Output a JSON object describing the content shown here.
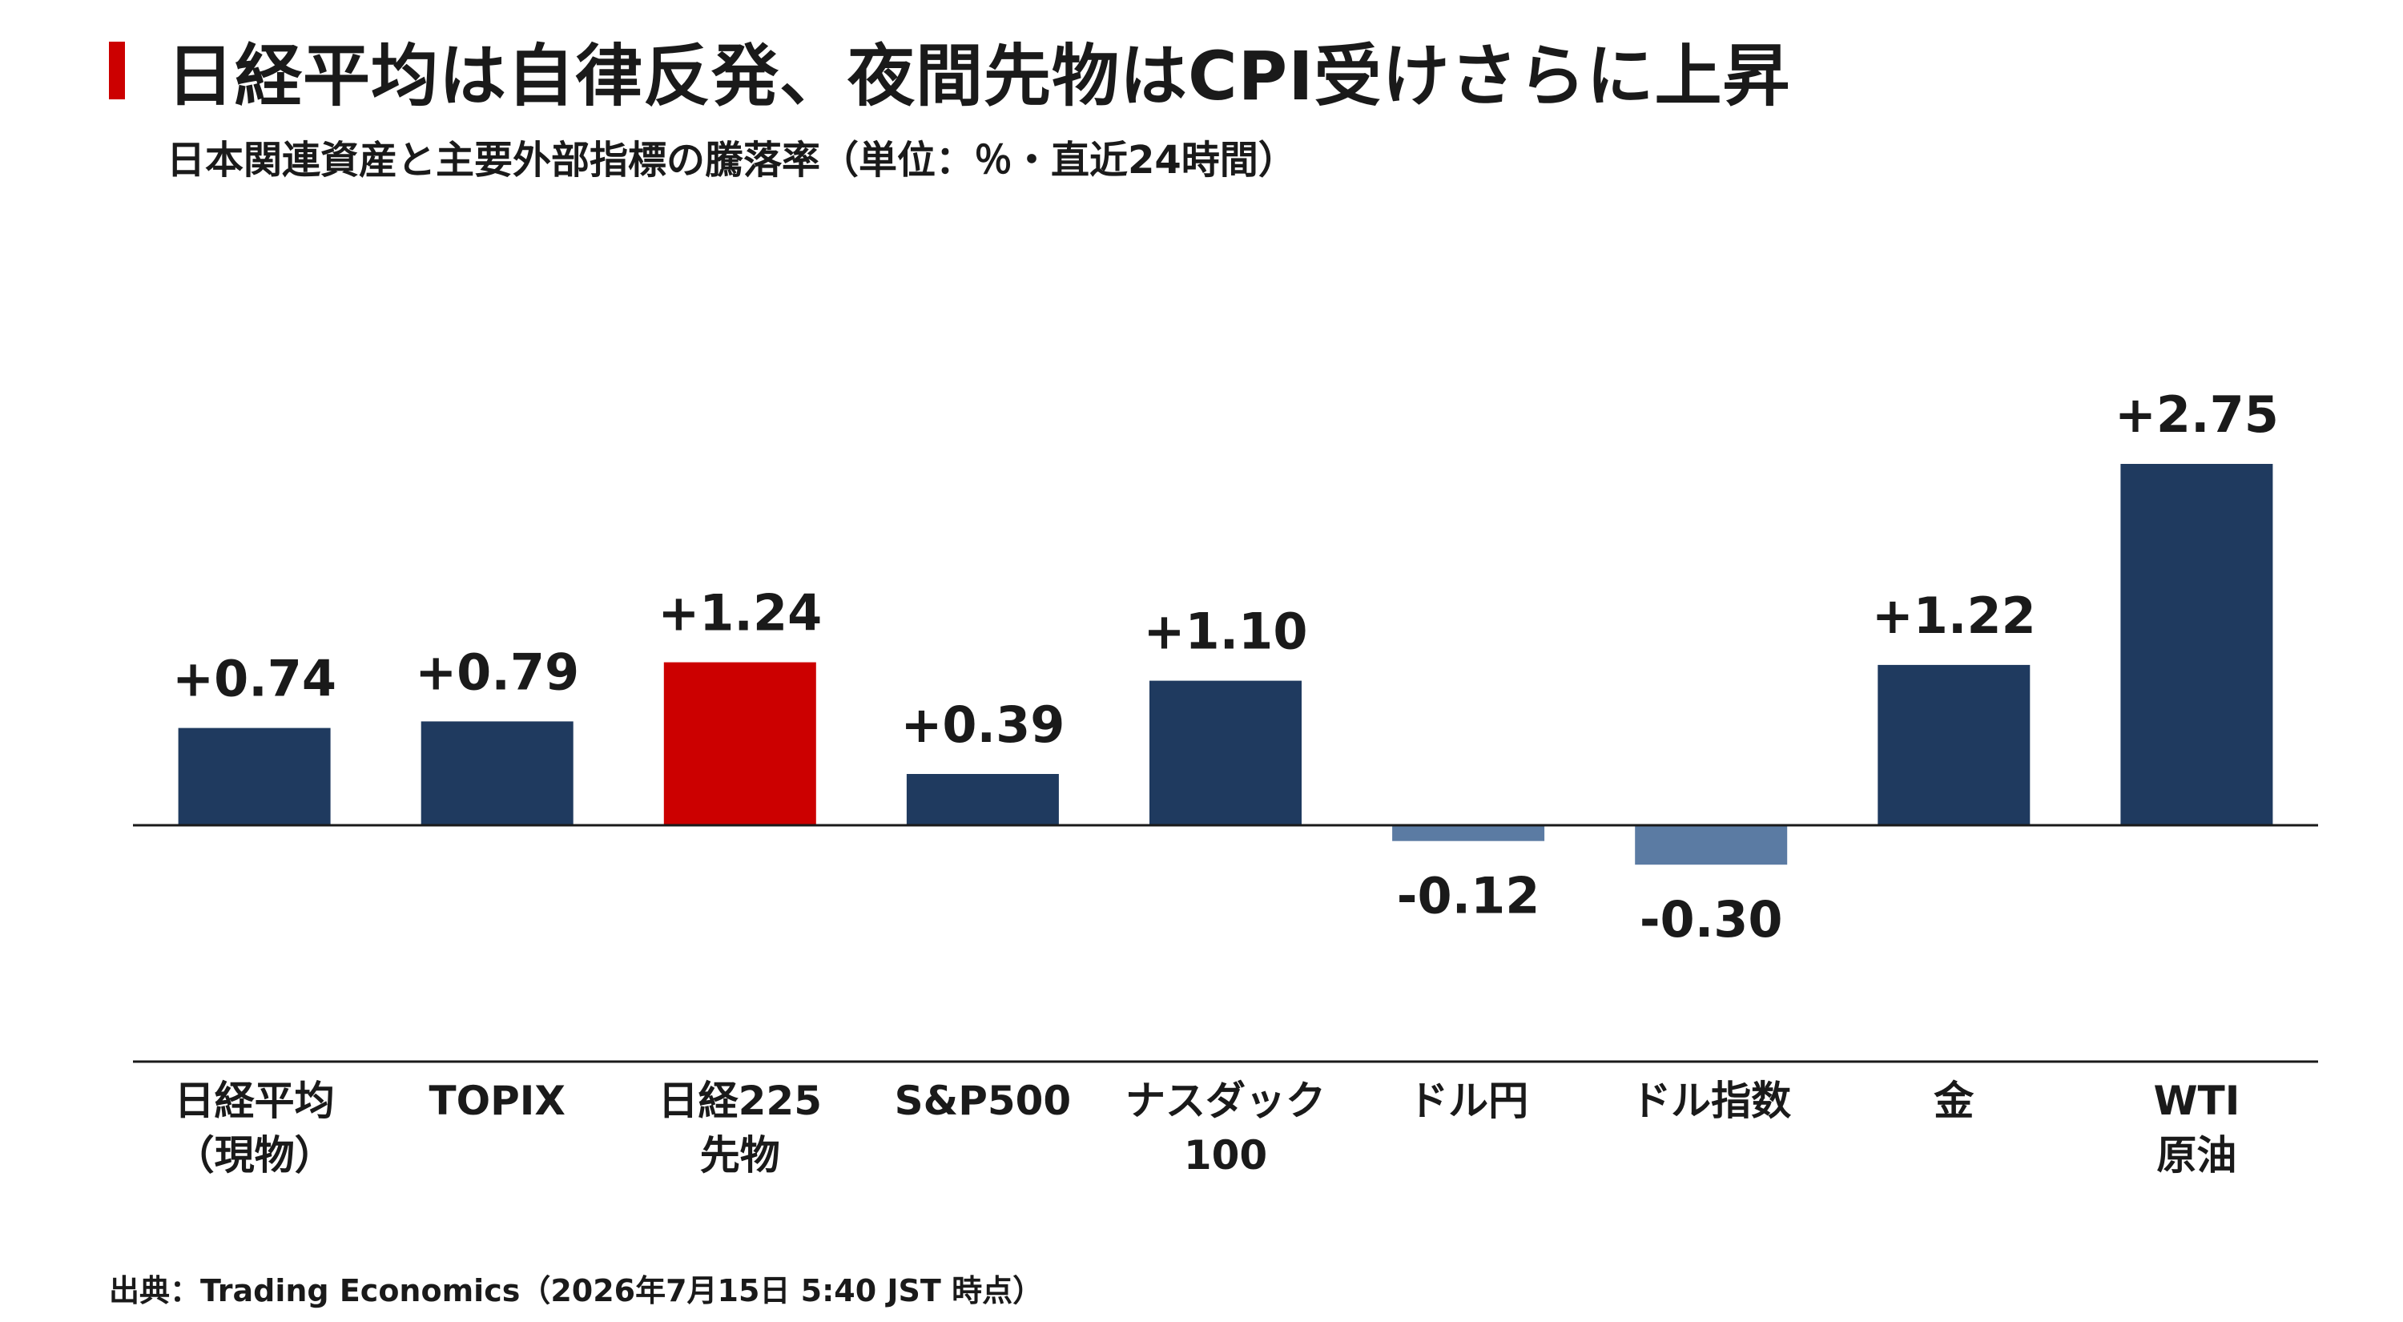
{
  "title": "日経平均は自律反発、夜間先物はCPI受けさらに上昇",
  "subtitle": "日本関連資産と主要外部指標の騰落率（単位：％・直近24時間）",
  "source": "出典：Trading Economics（2026年7月15日 5:40 JST 時点）",
  "colors": {
    "accent": "#cc0000",
    "positive": "#1f3a5f",
    "highlight": "#cc0000",
    "negative": "#5b7ba3"
  },
  "chart_data": {
    "type": "bar",
    "categories": [
      [
        "日経平均",
        "（現物）"
      ],
      [
        "TOPIX"
      ],
      [
        "日経225",
        "先物"
      ],
      [
        "S&P500"
      ],
      [
        "ナスダック",
        "100"
      ],
      [
        "ドル円"
      ],
      [
        "ドル指数"
      ],
      [
        "金"
      ],
      [
        "WTI",
        "原油"
      ]
    ],
    "values": [
      0.74,
      0.79,
      1.24,
      0.39,
      1.1,
      -0.12,
      -0.3,
      1.22,
      2.75
    ],
    "value_labels": [
      "+0.74",
      "+0.79",
      "+1.24",
      "+0.39",
      "+1.10",
      "-0.12",
      "-0.30",
      "+1.22",
      "+2.75"
    ],
    "highlight_index": 2,
    "title": "",
    "xlabel": "",
    "ylabel": "",
    "ylim": [
      -1.8,
      2.75
    ],
    "grid": false,
    "legend": "none"
  }
}
